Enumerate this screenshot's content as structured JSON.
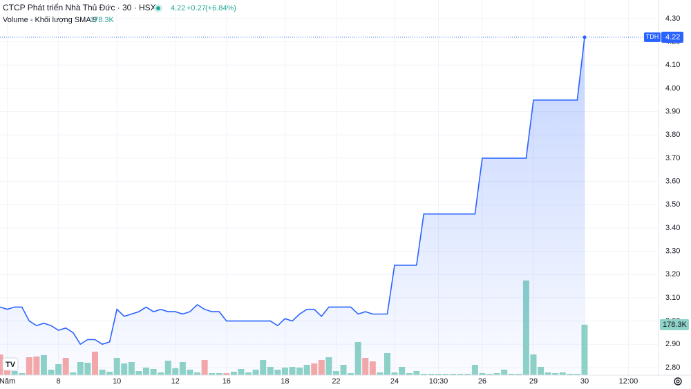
{
  "chart_data": {
    "type": "line",
    "title": "CTCP Phát triển Nhà Thủ Đức · 30 · HSX",
    "change": "+0.27",
    "change_percent": "(+6.84%)",
    "volume_label": "178.3K",
    "categories": [
      null,
      "Năm",
      null,
      null,
      null,
      null,
      null,
      null,
      "8",
      null,
      null,
      null,
      null,
      null,
      null,
      null,
      "10",
      null,
      null,
      null,
      null,
      null,
      null,
      null,
      "12",
      null,
      null,
      null,
      null,
      null,
      null,
      "16",
      null,
      null,
      null,
      null,
      null,
      null,
      null,
      "18",
      null,
      null,
      null,
      null,
      null,
      null,
      "22",
      null,
      null,
      null,
      null,
      null,
      null,
      null,
      "24",
      null,
      null,
      null,
      null,
      null,
      "10:30",
      null,
      null,
      null,
      null,
      null,
      "26",
      null,
      null,
      null,
      null,
      null,
      null,
      "29",
      null,
      null,
      null,
      null,
      null,
      null,
      "30",
      null,
      null,
      null,
      null,
      null,
      "12:00"
    ],
    "series": [
      {
        "name": "TDH",
        "color": "#2962ff",
        "values": [
          3.06,
          3.05,
          3.06,
          3.06,
          3.0,
          2.98,
          2.99,
          2.98,
          2.96,
          2.97,
          2.95,
          2.9,
          2.92,
          2.92,
          2.9,
          2.91,
          3.05,
          3.02,
          3.03,
          3.04,
          3.06,
          3.04,
          3.05,
          3.04,
          3.04,
          3.03,
          3.04,
          3.07,
          3.05,
          3.04,
          3.04,
          3.0,
          3.0,
          3.0,
          3.0,
          3.0,
          3.0,
          3.0,
          2.98,
          3.01,
          3.0,
          3.03,
          3.05,
          3.05,
          3.02,
          3.06,
          3.06,
          3.06,
          3.06,
          3.03,
          3.04,
          3.03,
          3.03,
          3.03,
          3.24,
          3.24,
          3.24,
          3.24,
          3.46,
          3.46,
          3.46,
          3.46,
          3.46,
          3.46,
          3.46,
          3.46,
          3.7,
          3.7,
          3.7,
          3.7,
          3.7,
          3.7,
          3.7,
          3.95,
          3.95,
          3.95,
          3.95,
          3.95,
          3.95,
          3.95,
          4.22,
          null,
          null,
          null,
          null,
          null,
          null
        ]
      },
      {
        "name": "Volume - Khối lượng SMA 9",
        "type": "bar",
        "values": [
          73.2,
          43.9,
          14.6,
          7.3,
          63.4,
          65.9,
          70.8,
          19.5,
          39.0,
          61.0,
          9.8,
          46.4,
          43.9,
          83.0,
          19.5,
          12.2,
          61.0,
          41.5,
          46.4,
          14.6,
          26.8,
          22.0,
          9.8,
          51.2,
          24.4,
          46.4,
          19.5,
          9.8,
          53.7,
          7.3,
          7.3,
          7.3,
          12.2,
          22.0,
          9.8,
          19.5,
          53.7,
          29.3,
          19.5,
          26.8,
          29.3,
          26.8,
          36.6,
          41.5,
          53.7,
          63.4,
          14.6,
          36.6,
          7.3,
          117.1,
          61.0,
          48.8,
          9.8,
          78.1,
          9.8,
          29.3,
          7.3,
          14.6,
          4.9,
          4.9,
          4.9,
          4.9,
          4.9,
          4.9,
          4.9,
          36.6,
          7.3,
          4.9,
          7.3,
          19.5,
          4.9,
          4.9,
          334.3,
          73.2,
          29.3,
          9.8,
          7.3,
          9.8,
          4.9,
          4.9,
          178.3,
          null,
          null,
          null,
          null,
          null,
          null
        ],
        "colors": [
          "#f7a9a7",
          "#f7a9a7",
          "#8fd3c6",
          "#8fd3c6",
          "#f7a9a7",
          "#f7a9a7",
          "#8fd3c6",
          "#8fd3c6",
          "#8fd3c6",
          "#f7a9a7",
          "#8fd3c6",
          "#8fd3c6",
          "#8fd3c6",
          "#f7a9a7",
          "#8fd3c6",
          "#8fd3c6",
          "#8fd3c6",
          "#8fd3c6",
          "#8fd3c6",
          "#8fd3c6",
          "#8fd3c6",
          "#8fd3c6",
          "#8fd3c6",
          "#8fd3c6",
          "#8fd3c6",
          "#8fd3c6",
          "#8fd3c6",
          "#8fd3c6",
          "#f7a9a7",
          "#8fd3c6",
          "#8fd3c6",
          "#f7a9a7",
          "#8fd3c6",
          "#8fd3c6",
          "#8fd3c6",
          "#8fd3c6",
          "#8fd3c6",
          "#8fd3c6",
          "#8fd3c6",
          "#8fd3c6",
          "#8fd3c6",
          "#8fd3c6",
          "#8fd3c6",
          "#f7a9a7",
          "#f7a9a7",
          "#8fd3c6",
          "#8fd3c6",
          "#8fd3c6",
          "#8fd3c6",
          "#8fd3c6",
          "#f7a9a7",
          "#f7a9a7",
          "#8fd3c6",
          "#8fd3c6",
          "#8fd3c6",
          "#8fd3c6",
          "#8fd3c6",
          "#8fd3c6",
          "#8fd3c6",
          "#8fd3c6",
          "#8fd3c6",
          "#8fd3c6",
          "#8fd3c6",
          "#8fd3c6",
          "#8fd3c6",
          "#8fd3c6",
          "#8fd3c6",
          "#8fd3c6",
          "#8fd3c6",
          "#8fd3c6",
          "#8fd3c6",
          "#8fd3c6",
          "#8fd3c6",
          "#8fd3c6",
          "#8fd3c6",
          "#8fd3c6",
          "#8fd3c6",
          "#8fd3c6",
          "#8fd3c6",
          "#8fd3c6",
          "#8fd3c6",
          null,
          null,
          null,
          null,
          null,
          null
        ]
      }
    ],
    "ylim": [
      2.767,
      4.38
    ],
    "yticks": [
      {
        "value": 2.8,
        "label": "2.80"
      },
      {
        "value": 2.9,
        "label": "2.90"
      },
      {
        "value": 3.0,
        "label": "3.00"
      },
      {
        "value": 3.1,
        "label": "3.10"
      },
      {
        "value": 3.2,
        "label": "3.20"
      },
      {
        "value": 3.3,
        "label": "3.30"
      },
      {
        "value": 3.4,
        "label": "3.40"
      },
      {
        "value": 3.5,
        "label": "3.50"
      },
      {
        "value": 3.6,
        "label": "3.60"
      },
      {
        "value": 3.7,
        "label": "3.70"
      },
      {
        "value": 3.8,
        "label": "3.80"
      },
      {
        "value": 3.9,
        "label": "3.90"
      },
      {
        "value": 4.0,
        "label": "4.00"
      },
      {
        "value": 4.1,
        "label": "4.10"
      },
      {
        "value": 4.2,
        "label": "4.20"
      },
      {
        "value": 4.3,
        "label": "4.30"
      }
    ],
    "grid": true
  }
}
